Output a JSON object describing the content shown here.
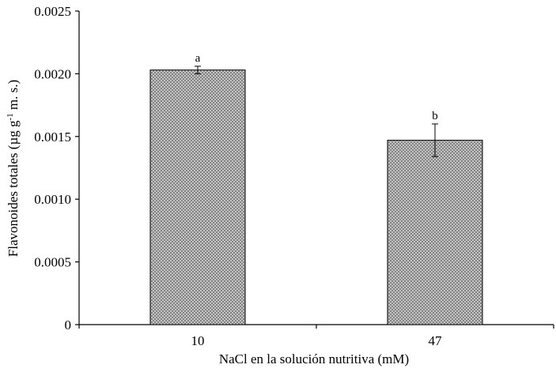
{
  "chart_data": {
    "type": "bar",
    "ylabel": [
      "Flavonoides totales (µg g",
      "-1",
      " m. s.)"
    ],
    "xlabel": "NaCl en la solución nutritiva (mM)",
    "categories": [
      "10",
      "47"
    ],
    "values": [
      0.00203,
      0.00147
    ],
    "errors": [
      3e-05,
      0.00013
    ],
    "annotations": [
      "a",
      "b"
    ],
    "color": "#b0b0b0",
    "ylim": [
      0,
      0.0025
    ],
    "yticks": [
      0,
      0.0005,
      {
        "value": 0.001,
        "label": "0.0010"
      },
      0.0015,
      {
        "value": 0.002,
        "label": "0.0020"
      },
      0.0025
    ]
  }
}
